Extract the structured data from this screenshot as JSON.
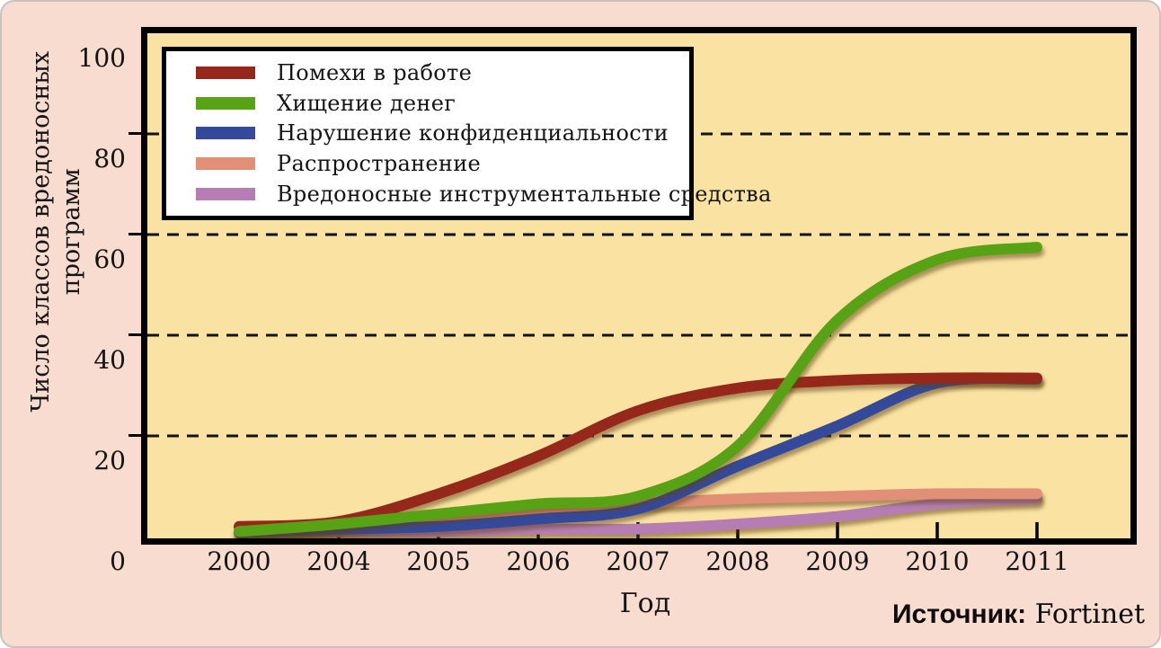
{
  "source": {
    "label": "Источник:",
    "value": "Fortinet"
  },
  "chart_data": {
    "type": "line",
    "title": "",
    "xlabel": "Год",
    "ylabel": "Число классов вредоносных программ",
    "ylabel_lines": [
      "Число классов вредоносных",
      "программ"
    ],
    "categories": [
      "2000",
      "2004",
      "2005",
      "2006",
      "2007",
      "2008",
      "2009",
      "2010",
      "2011"
    ],
    "yticks": [
      "0",
      "20",
      "40",
      "60",
      "80",
      "100"
    ],
    "ylim": [
      0,
      100
    ],
    "grid": "horizontal dashed lines at 20, 40, 60, 80",
    "legend_position": "top-left inside plot",
    "plot_background": "#f9e2a2",
    "page_background": "#f8dccf",
    "series": [
      {
        "name": "Помехи в работе",
        "color": "#96281b",
        "z": 3,
        "values": [
          2,
          3,
          8.5,
          16,
          25,
          29.5,
          31,
          31.5,
          31.5
        ]
      },
      {
        "name": "Хищение денег",
        "color": "#57a315",
        "z": 4,
        "values": [
          1,
          2.5,
          4.5,
          6.5,
          8,
          18,
          43,
          55,
          57.5
        ]
      },
      {
        "name": "Нарушение конфиденциальности",
        "color": "#35499b",
        "z": 2,
        "values": [
          0.8,
          1.5,
          2,
          3.5,
          5.5,
          14,
          22,
          30.5,
          31.3
        ]
      },
      {
        "name": "Распространение",
        "color": "#e28f78",
        "z": 1,
        "values": [
          0.8,
          2,
          3.5,
          5,
          6.5,
          7.5,
          8,
          8.5,
          8.5
        ]
      },
      {
        "name": "Вредоносные инструментальные средства",
        "color": "#b57db3",
        "z": 0,
        "values": [
          1,
          1,
          1,
          1.5,
          1.5,
          2.5,
          4,
          6.5,
          7.5
        ]
      }
    ]
  }
}
